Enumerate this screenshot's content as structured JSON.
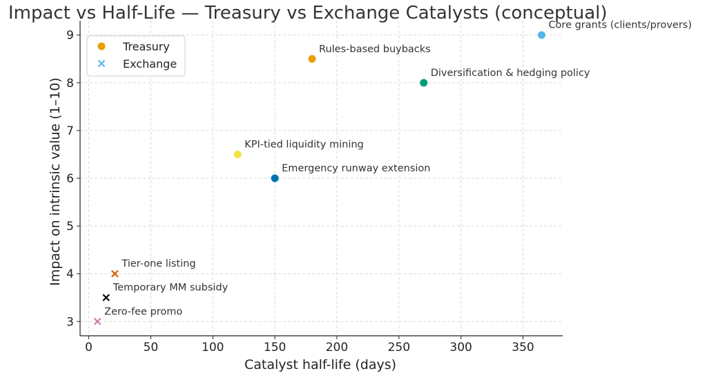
{
  "chart_data": {
    "type": "scatter",
    "title": "Impact vs Half-Life — Treasury vs Exchange Catalysts (conceptual)",
    "xlabel": "Catalyst half-life (days)",
    "ylabel": "Impact on intrinsic value (1–10)",
    "xlim": [
      -7,
      382
    ],
    "ylim": [
      2.7,
      9.3
    ],
    "xticks": [
      0,
      50,
      100,
      150,
      200,
      250,
      300,
      350
    ],
    "yticks": [
      3,
      4,
      5,
      6,
      7,
      8,
      9
    ],
    "grid": true,
    "legend_position": "top-left",
    "legend": [
      {
        "label": "Treasury",
        "marker": "circle",
        "color": "#E69F00"
      },
      {
        "label": "Exchange",
        "marker": "x",
        "color": "#56B4E9"
      }
    ],
    "points": [
      {
        "group": "Treasury",
        "label": "Core grants (clients/provers)",
        "x": 365,
        "y": 9.0,
        "marker": "circle",
        "color": "#56B4E9"
      },
      {
        "group": "Treasury",
        "label": "Rules-based buybacks",
        "x": 180,
        "y": 8.5,
        "marker": "circle",
        "color": "#E69F00"
      },
      {
        "group": "Treasury",
        "label": "Diversification & hedging policy",
        "x": 270,
        "y": 8.0,
        "marker": "circle",
        "color": "#009E73"
      },
      {
        "group": "Treasury",
        "label": "KPI-tied liquidity mining",
        "x": 120,
        "y": 6.5,
        "marker": "circle",
        "color": "#F0E442"
      },
      {
        "group": "Treasury",
        "label": "Emergency runway extension",
        "x": 150,
        "y": 6.0,
        "marker": "circle",
        "color": "#0072B2"
      },
      {
        "group": "Exchange",
        "label": "Tier-one listing",
        "x": 21,
        "y": 4.0,
        "marker": "x",
        "color": "#D55E00"
      },
      {
        "group": "Exchange",
        "label": "Temporary MM subsidy",
        "x": 14,
        "y": 3.5,
        "marker": "x",
        "color": "#000000"
      },
      {
        "group": "Exchange",
        "label": "Zero-fee promo",
        "x": 7,
        "y": 3.0,
        "marker": "x",
        "color": "#CC79A7"
      }
    ]
  }
}
